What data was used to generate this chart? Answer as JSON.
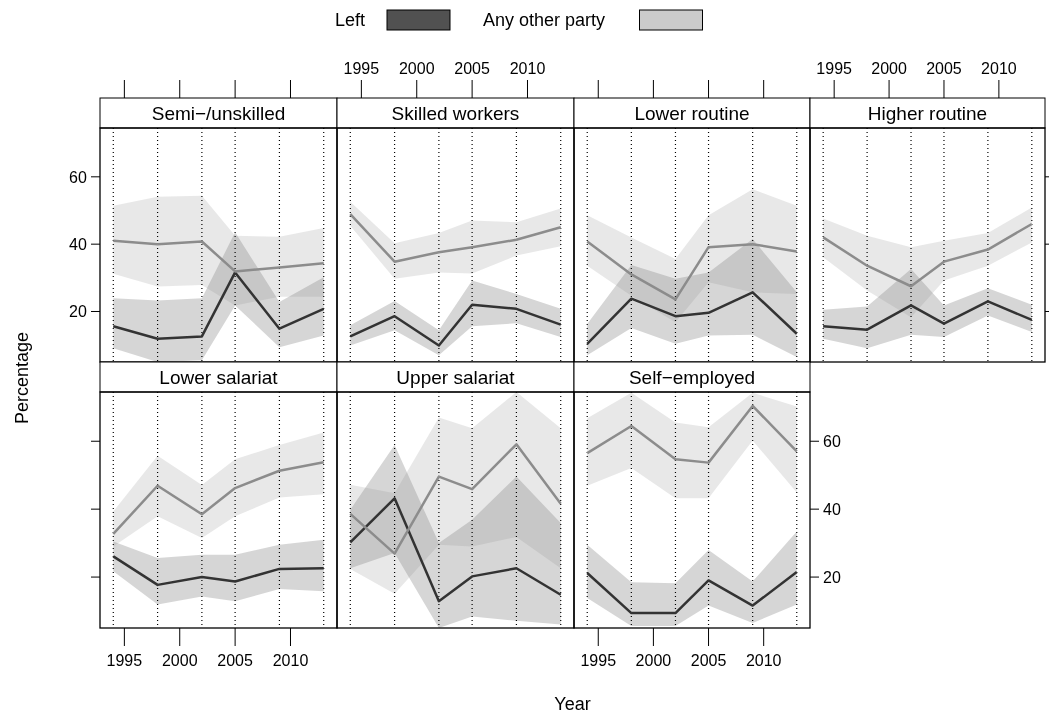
{
  "chart_data": [
    {
      "type": "line",
      "title": "Semi−/unskilled",
      "ylabel": "Percentage",
      "x": [
        1994,
        1998,
        2002,
        2005,
        2009,
        2013
      ],
      "xlim": [
        1992.8,
        2014.2
      ],
      "xticks": [
        1995,
        2000,
        2005,
        2010
      ],
      "ylim": [
        5,
        74.5
      ],
      "yticks": [
        20,
        40,
        60
      ],
      "tick_labels": "y",
      "legend": "top",
      "ref_lines": [
        {
          "axis": "x",
          "value": 1994,
          "line_style": "dotted",
          "color": "#000000"
        },
        {
          "axis": "x",
          "value": 1998,
          "line_style": "dotted",
          "color": "#000000"
        },
        {
          "axis": "x",
          "value": 2002,
          "line_style": "dotted",
          "color": "#000000"
        },
        {
          "axis": "x",
          "value": 2005,
          "line_style": "dotted",
          "color": "#000000"
        },
        {
          "axis": "x",
          "value": 2009,
          "line_style": "dotted",
          "color": "#000000"
        },
        {
          "axis": "x",
          "value": 2013,
          "line_style": "dotted",
          "color": "#000000"
        }
      ],
      "series": [
        {
          "name": "Left",
          "color": "#333333",
          "values": [
            15.6,
            11.9,
            12.6,
            31.6,
            14.9,
            20.8
          ],
          "lower": [
            9.1,
            5.0,
            5.5,
            21.8,
            9.4,
            12.9
          ],
          "upper": [
            23.9,
            23.3,
            23.9,
            43.5,
            22.8,
            30.2
          ]
        },
        {
          "name": "Any other party",
          "color": "#8c8c8c",
          "values": [
            41.0,
            40.0,
            40.8,
            31.9,
            33.1,
            34.3
          ],
          "lower": [
            31.2,
            27.4,
            27.9,
            21.8,
            24.4,
            24.4
          ],
          "upper": [
            51.4,
            54.1,
            54.4,
            42.5,
            42.2,
            44.8
          ]
        }
      ]
    },
    {
      "type": "line",
      "title": "Skilled workers",
      "x": [
        1994,
        1998,
        2002,
        2005,
        2009,
        2013
      ],
      "xlim": [
        1992.8,
        2014.2
      ],
      "xticks": [
        1995,
        2000,
        2005,
        2010
      ],
      "ylim": [
        5,
        74.5
      ],
      "yticks": [
        20,
        40,
        60
      ],
      "tick_labels": "x",
      "ref_lines": [
        {
          "axis": "x",
          "value": 1994,
          "line_style": "dotted",
          "color": "#000000"
        },
        {
          "axis": "x",
          "value": 1998,
          "line_style": "dotted",
          "color": "#000000"
        },
        {
          "axis": "x",
          "value": 2002,
          "line_style": "dotted",
          "color": "#000000"
        },
        {
          "axis": "x",
          "value": 2005,
          "line_style": "dotted",
          "color": "#000000"
        },
        {
          "axis": "x",
          "value": 2009,
          "line_style": "dotted",
          "color": "#000000"
        },
        {
          "axis": "x",
          "value": 2013,
          "line_style": "dotted",
          "color": "#000000"
        }
      ],
      "series": [
        {
          "color": "#333333",
          "values": [
            12.6,
            18.6,
            9.9,
            22.0,
            20.8,
            16.1
          ],
          "lower": [
            9.9,
            14.4,
            7.0,
            15.6,
            16.5,
            12.4
          ],
          "upper": [
            15.9,
            23.1,
            14.4,
            29.2,
            25.2,
            20.8
          ]
        },
        {
          "color": "#8c8c8c",
          "values": [
            48.9,
            34.8,
            37.6,
            39.1,
            41.3,
            45.0
          ],
          "lower": [
            45.5,
            29.7,
            31.6,
            31.3,
            36.6,
            39.4
          ],
          "upper": [
            52.6,
            40.3,
            43.3,
            47.0,
            46.5,
            50.6
          ]
        }
      ]
    },
    {
      "type": "line",
      "title": "Lower routine",
      "x": [
        1994,
        1998,
        2002,
        2005,
        2009,
        2013
      ],
      "xlim": [
        1992.8,
        2014.2
      ],
      "xticks": [
        1995,
        2000,
        2005,
        2010
      ],
      "ylim": [
        5,
        74.5
      ],
      "yticks": [
        20,
        40,
        60
      ],
      "tick_labels": false,
      "ref_lines": [
        {
          "axis": "x",
          "value": 1994,
          "line_style": "dotted",
          "color": "#000000"
        },
        {
          "axis": "x",
          "value": 1998,
          "line_style": "dotted",
          "color": "#000000"
        },
        {
          "axis": "x",
          "value": 2002,
          "line_style": "dotted",
          "color": "#000000"
        },
        {
          "axis": "x",
          "value": 2005,
          "line_style": "dotted",
          "color": "#000000"
        },
        {
          "axis": "x",
          "value": 2009,
          "line_style": "dotted",
          "color": "#000000"
        },
        {
          "axis": "x",
          "value": 2013,
          "line_style": "dotted",
          "color": "#000000"
        }
      ],
      "series": [
        {
          "color": "#333333",
          "values": [
            10.4,
            23.8,
            18.6,
            19.6,
            25.7,
            13.4
          ],
          "lower": [
            7.0,
            15.1,
            10.4,
            12.9,
            13.1,
            6.5
          ],
          "upper": [
            16.3,
            33.8,
            29.7,
            31.6,
            41.5,
            25.7
          ]
        },
        {
          "color": "#8c8c8c",
          "values": [
            40.8,
            31.0,
            23.6,
            39.1,
            40.0,
            37.8
          ],
          "lower": [
            33.6,
            24.7,
            16.8,
            28.7,
            25.7,
            25.2
          ],
          "upper": [
            48.6,
            42.0,
            35.6,
            48.6,
            56.3,
            51.4
          ]
        }
      ]
    },
    {
      "type": "line",
      "title": "Higher routine",
      "x": [
        1994,
        1998,
        2002,
        2005,
        2009,
        2013
      ],
      "xlim": [
        1992.8,
        2014.2
      ],
      "xticks": [
        1995,
        2000,
        2005,
        2010
      ],
      "ylim": [
        5,
        74.5
      ],
      "yticks": [
        20,
        40,
        60
      ],
      "tick_labels": "x",
      "ref_lines": [
        {
          "axis": "x",
          "value": 1994,
          "line_style": "dotted",
          "color": "#000000"
        },
        {
          "axis": "x",
          "value": 1998,
          "line_style": "dotted",
          "color": "#000000"
        },
        {
          "axis": "x",
          "value": 2002,
          "line_style": "dotted",
          "color": "#000000"
        },
        {
          "axis": "x",
          "value": 2005,
          "line_style": "dotted",
          "color": "#000000"
        },
        {
          "axis": "x",
          "value": 2009,
          "line_style": "dotted",
          "color": "#000000"
        },
        {
          "axis": "x",
          "value": 2013,
          "line_style": "dotted",
          "color": "#000000"
        }
      ],
      "series": [
        {
          "color": "#333333",
          "values": [
            15.6,
            14.6,
            21.8,
            16.4,
            23.0,
            17.5
          ],
          "lower": [
            11.9,
            9.1,
            13.1,
            12.4,
            18.8,
            13.9
          ],
          "upper": [
            20.5,
            21.5,
            32.6,
            21.8,
            26.9,
            22.0
          ]
        },
        {
          "color": "#8c8c8c",
          "values": [
            42.0,
            33.6,
            27.5,
            34.8,
            38.4,
            46.0
          ],
          "lower": [
            36.1,
            26.2,
            18.3,
            29.2,
            33.6,
            40.5
          ],
          "upper": [
            47.6,
            42.5,
            39.1,
            41.0,
            43.3,
            50.9
          ]
        }
      ]
    },
    {
      "type": "line",
      "title": "Lower salariat",
      "x": [
        1994,
        1998,
        2002,
        2005,
        2009,
        2013
      ],
      "xlim": [
        1992.8,
        2014.2
      ],
      "xticks": [
        1995,
        2000,
        2005,
        2010
      ],
      "ylim": [
        5,
        74.5
      ],
      "yticks": [
        20,
        40,
        60
      ],
      "tick_labels": "x",
      "ref_lines": [
        {
          "axis": "x",
          "value": 1994,
          "line_style": "dotted",
          "color": "#000000"
        },
        {
          "axis": "x",
          "value": 1998,
          "line_style": "dotted",
          "color": "#000000"
        },
        {
          "axis": "x",
          "value": 2002,
          "line_style": "dotted",
          "color": "#000000"
        },
        {
          "axis": "x",
          "value": 2005,
          "line_style": "dotted",
          "color": "#000000"
        },
        {
          "axis": "x",
          "value": 2009,
          "line_style": "dotted",
          "color": "#000000"
        },
        {
          "axis": "x",
          "value": 2013,
          "line_style": "dotted",
          "color": "#000000"
        }
      ],
      "series": [
        {
          "color": "#333333",
          "values": [
            26.1,
            17.7,
            20.0,
            18.7,
            22.4,
            22.6
          ],
          "lower": [
            21.7,
            11.9,
            14.3,
            12.9,
            16.5,
            15.8
          ],
          "upper": [
            30.5,
            25.6,
            26.6,
            26.6,
            29.5,
            31.0
          ]
        },
        {
          "color": "#8c8c8c",
          "values": [
            32.7,
            46.9,
            38.5,
            46.2,
            51.3,
            53.8
          ],
          "lower": [
            29.0,
            37.9,
            31.5,
            37.9,
            43.4,
            44.4
          ],
          "upper": [
            39.3,
            55.7,
            47.1,
            54.7,
            58.9,
            62.6
          ]
        }
      ]
    },
    {
      "type": "line",
      "title": "Upper salariat",
      "xlabel": "Year",
      "x": [
        1994,
        1998,
        2002,
        2005,
        2009,
        2013
      ],
      "xlim": [
        1992.8,
        2014.2
      ],
      "xticks": [
        1995,
        2000,
        2005,
        2010
      ],
      "ylim": [
        5,
        74.5
      ],
      "yticks": [
        20,
        40,
        60
      ],
      "tick_labels": false,
      "ref_lines": [
        {
          "axis": "x",
          "value": 1994,
          "line_style": "dotted",
          "color": "#000000"
        },
        {
          "axis": "x",
          "value": 1998,
          "line_style": "dotted",
          "color": "#000000"
        },
        {
          "axis": "x",
          "value": 2002,
          "line_style": "dotted",
          "color": "#000000"
        },
        {
          "axis": "x",
          "value": 2005,
          "line_style": "dotted",
          "color": "#000000"
        },
        {
          "axis": "x",
          "value": 2009,
          "line_style": "dotted",
          "color": "#000000"
        },
        {
          "axis": "x",
          "value": 2013,
          "line_style": "dotted",
          "color": "#000000"
        }
      ],
      "series": [
        {
          "color": "#333333",
          "values": [
            30.2,
            43.2,
            12.9,
            20.2,
            22.6,
            14.8
          ],
          "lower": [
            22.6,
            27.1,
            5,
            8.4,
            7.1,
            6
          ],
          "upper": [
            39.8,
            58.9,
            30.0,
            36.9,
            49.6,
            35.9
          ]
        },
        {
          "color": "#8c8c8c",
          "values": [
            38.6,
            26.9,
            49.6,
            45.9,
            59.1,
            41.6
          ],
          "lower": [
            22.4,
            15.1,
            29.5,
            29.0,
            31.8,
            22.6
          ],
          "upper": [
            47.2,
            44.7,
            67.0,
            63.8,
            74.5,
            63.8
          ]
        }
      ]
    },
    {
      "type": "line",
      "title": "Self−employed",
      "x": [
        1994,
        1998,
        2002,
        2005,
        2009,
        2013
      ],
      "xlim": [
        1992.8,
        2014.2
      ],
      "xticks": [
        1995,
        2000,
        2005,
        2010
      ],
      "ylim": [
        5,
        74.5
      ],
      "yticks": [
        20,
        40,
        60
      ],
      "ref_lines": [
        {
          "axis": "x",
          "value": 1994,
          "line_style": "dotted",
          "color": "#000000"
        },
        {
          "axis": "x",
          "value": 1998,
          "line_style": "dotted",
          "color": "#000000"
        },
        {
          "axis": "x",
          "value": 2002,
          "line_style": "dotted",
          "color": "#000000"
        },
        {
          "axis": "x",
          "value": 2005,
          "line_style": "dotted",
          "color": "#000000"
        },
        {
          "axis": "x",
          "value": 2009,
          "line_style": "dotted",
          "color": "#000000"
        },
        {
          "axis": "x",
          "value": 2013,
          "line_style": "dotted",
          "color": "#000000"
        }
      ],
      "series": [
        {
          "color": "#333333",
          "values": [
            21.2,
            9.4,
            9.4,
            19.0,
            11.6,
            21.5
          ],
          "lower": [
            13.8,
            5.6,
            5.6,
            11.6,
            6.5,
            11.9
          ],
          "upper": [
            29.5,
            18.5,
            18.2,
            28.0,
            18.7,
            33.4
          ]
        },
        {
          "color": "#8c8c8c",
          "values": [
            56.5,
            64.5,
            54.7,
            53.7,
            70.4,
            57.0
          ],
          "lower": [
            46.9,
            52.1,
            43.2,
            43.2,
            60.2,
            44.9
          ],
          "upper": [
            66.8,
            74.3,
            65.5,
            64.1,
            74.3,
            70.2
          ]
        }
      ]
    }
  ]
}
